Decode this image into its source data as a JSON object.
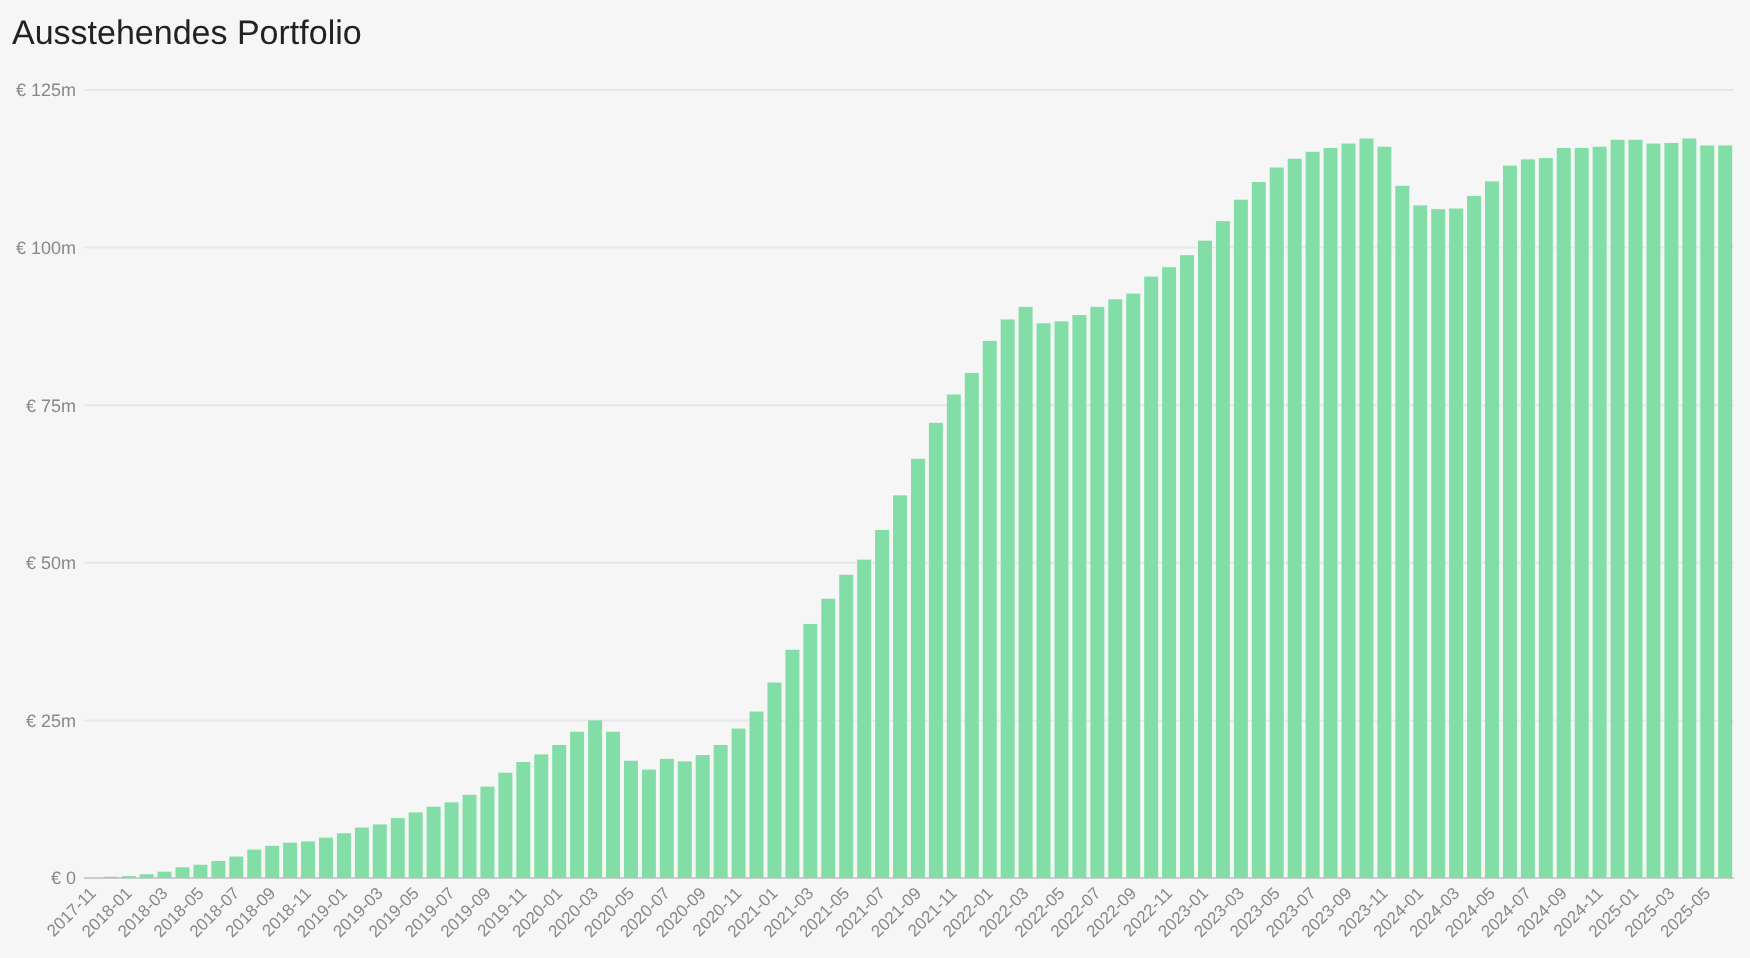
{
  "chart_data": {
    "type": "bar",
    "title": "Ausstehendes Portfolio",
    "categories": [
      "2017-11",
      null,
      "2018-01",
      null,
      "2018-03",
      null,
      "2018-05",
      null,
      "2018-07",
      null,
      "2018-09",
      null,
      "2018-11",
      null,
      "2019-01",
      null,
      "2019-03",
      null,
      "2019-05",
      null,
      "2019-07",
      null,
      "2019-09",
      null,
      "2019-11",
      null,
      "2020-01",
      null,
      "2020-03",
      null,
      "2020-05",
      null,
      "2020-07",
      null,
      "2020-09",
      null,
      "2020-11",
      null,
      "2021-01",
      null,
      "2021-03",
      null,
      "2021-05",
      null,
      "2021-07",
      null,
      "2021-09",
      null,
      "2021-11",
      null,
      "2022-01",
      null,
      "2022-03",
      null,
      "2022-05",
      null,
      "2022-07",
      null,
      "2022-09",
      null,
      "2022-11",
      null,
      "2023-01",
      null,
      "2023-03",
      null,
      "2023-05",
      null,
      "2023-07",
      null,
      "2023-09",
      null,
      "2023-11",
      null,
      "2024-01",
      null,
      "2024-03",
      null,
      "2024-05",
      null,
      "2024-07",
      null,
      "2024-09",
      null,
      "2024-11",
      null,
      "2025-01",
      null,
      "2025-03",
      null,
      "2025-05",
      null
    ],
    "values": [
      0,
      0.2,
      0.3,
      0.6,
      1.0,
      1.7,
      2.1,
      2.7,
      3.4,
      4.5,
      5.1,
      5.6,
      5.8,
      6.4,
      7.1,
      8.0,
      8.5,
      9.5,
      10.4,
      11.3,
      12.0,
      13.2,
      14.5,
      16.7,
      18.4,
      19.6,
      21.1,
      23.2,
      25.0,
      23.2,
      18.6,
      17.2,
      18.9,
      18.5,
      19.5,
      21.1,
      23.7,
      26.4,
      31.0,
      36.2,
      40.3,
      44.3,
      48.1,
      50.5,
      55.2,
      60.7,
      66.5,
      72.2,
      76.7,
      80.1,
      85.2,
      88.6,
      90.6,
      88.0,
      88.3,
      89.3,
      90.6,
      91.8,
      92.7,
      95.4,
      96.9,
      98.8,
      101.1,
      104.2,
      107.6,
      110.4,
      112.7,
      114.1,
      115.2,
      115.8,
      116.5,
      117.3,
      116.0,
      109.8,
      106.7,
      106.1,
      106.2,
      108.2,
      110.5,
      113.0,
      114.0,
      114.2,
      115.8,
      115.8,
      116.0,
      117.1,
      117.1,
      116.5,
      116.6,
      117.3,
      116.2,
      116.2
    ],
    "color": "#82dea6",
    "ylim": [
      0,
      125
    ],
    "yticks": [
      {
        "value": 0,
        "label": "€ 0"
      },
      {
        "value": 25,
        "label": "€ 25m"
      },
      {
        "value": 50,
        "label": "€ 50m"
      },
      {
        "value": 75,
        "label": "€ 75m"
      },
      {
        "value": 100,
        "label": "€ 100m"
      },
      {
        "value": 125,
        "label": "€ 125m"
      }
    ],
    "grid": "y"
  }
}
